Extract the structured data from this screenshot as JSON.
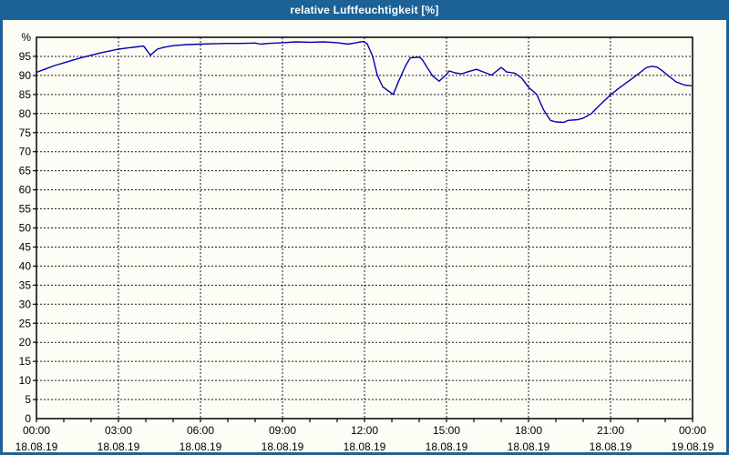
{
  "window": {
    "title": "relative Luftfeuchtigkeit [%]"
  },
  "colors": {
    "titlebar": "#1c6296",
    "window_border": "#1c6296",
    "title_text": "#ffffff",
    "plot_background": "#fdfdf6",
    "plot_border": "#000000",
    "grid": "#1a1a1a",
    "tick_text": "#000000",
    "line": "#0000b2"
  },
  "chart_data": {
    "type": "line",
    "title": "relative Luftfeuchtigkeit [%]",
    "xlabel": "",
    "ylabel": "%",
    "ylim": [
      0,
      100
    ],
    "y_tick_step": 5,
    "x_hours_range": [
      0,
      24
    ],
    "grid": "dashed",
    "legend": "none",
    "y_axis": {
      "unit_label": "%",
      "tick_labels": [
        "0",
        "5",
        "10",
        "15",
        "20",
        "25",
        "30",
        "35",
        "40",
        "45",
        "50",
        "55",
        "60",
        "65",
        "70",
        "75",
        "80",
        "85",
        "90",
        "95"
      ]
    },
    "x_axis": {
      "minor_tick_every_hours": 1,
      "ticks": [
        {
          "hour": 0,
          "time": "00:00",
          "date": "18.08.19"
        },
        {
          "hour": 3,
          "time": "03:00",
          "date": "18.08.19"
        },
        {
          "hour": 6,
          "time": "06:00",
          "date": "18.08.19"
        },
        {
          "hour": 9,
          "time": "09:00",
          "date": "18.08.19"
        },
        {
          "hour": 12,
          "time": "12:00",
          "date": "18.08.19"
        },
        {
          "hour": 15,
          "time": "15:00",
          "date": "18.08.19"
        },
        {
          "hour": 18,
          "time": "18:00",
          "date": "18.08.19"
        },
        {
          "hour": 21,
          "time": "21:00",
          "date": "18.08.19"
        },
        {
          "hour": 24,
          "time": "00:00",
          "date": "19.08.19"
        }
      ]
    },
    "series": [
      {
        "name": "relative Luftfeuchtigkeit",
        "color": "#0000b2",
        "points": [
          [
            0.0,
            90.8
          ],
          [
            0.33,
            91.7
          ],
          [
            0.67,
            92.6
          ],
          [
            1.0,
            93.3
          ],
          [
            1.33,
            94.0
          ],
          [
            1.67,
            94.7
          ],
          [
            2.0,
            95.3
          ],
          [
            2.33,
            95.9
          ],
          [
            2.67,
            96.4
          ],
          [
            3.0,
            96.9
          ],
          [
            3.33,
            97.2
          ],
          [
            3.67,
            97.5
          ],
          [
            3.92,
            97.7
          ],
          [
            4.17,
            95.3
          ],
          [
            4.42,
            96.9
          ],
          [
            4.67,
            97.4
          ],
          [
            5.0,
            97.8
          ],
          [
            5.5,
            98.1
          ],
          [
            6.0,
            98.2
          ],
          [
            6.5,
            98.3
          ],
          [
            7.0,
            98.4
          ],
          [
            7.5,
            98.4
          ],
          [
            8.0,
            98.5
          ],
          [
            8.2,
            98.2
          ],
          [
            8.5,
            98.4
          ],
          [
            9.0,
            98.6
          ],
          [
            9.5,
            98.8
          ],
          [
            10.0,
            98.7
          ],
          [
            10.5,
            98.8
          ],
          [
            11.0,
            98.6
          ],
          [
            11.4,
            98.2
          ],
          [
            11.7,
            98.6
          ],
          [
            11.95,
            98.9
          ],
          [
            12.1,
            98.3
          ],
          [
            12.3,
            95.0
          ],
          [
            12.47,
            90.0
          ],
          [
            12.67,
            87.0
          ],
          [
            13.05,
            85.0
          ],
          [
            13.25,
            88.5
          ],
          [
            13.5,
            92.5
          ],
          [
            13.67,
            94.6
          ],
          [
            14.0,
            94.8
          ],
          [
            14.1,
            94.3
          ],
          [
            14.3,
            92.0
          ],
          [
            14.5,
            89.8
          ],
          [
            14.73,
            88.5
          ],
          [
            15.0,
            90.3
          ],
          [
            15.1,
            91.2
          ],
          [
            15.3,
            90.7
          ],
          [
            15.55,
            90.4
          ],
          [
            15.8,
            91.0
          ],
          [
            16.1,
            91.6
          ],
          [
            16.35,
            90.9
          ],
          [
            16.65,
            90.1
          ],
          [
            17.0,
            92.1
          ],
          [
            17.2,
            90.9
          ],
          [
            17.5,
            90.6
          ],
          [
            17.75,
            89.3
          ],
          [
            18.0,
            86.9
          ],
          [
            18.3,
            85.0
          ],
          [
            18.55,
            81.0
          ],
          [
            18.8,
            78.2
          ],
          [
            19.0,
            77.8
          ],
          [
            19.3,
            77.7
          ],
          [
            19.45,
            78.2
          ],
          [
            19.8,
            78.4
          ],
          [
            20.0,
            78.8
          ],
          [
            20.3,
            80.0
          ],
          [
            20.6,
            82.2
          ],
          [
            21.0,
            84.9
          ],
          [
            21.3,
            86.6
          ],
          [
            21.7,
            88.7
          ],
          [
            22.0,
            90.3
          ],
          [
            22.3,
            92.0
          ],
          [
            22.5,
            92.4
          ],
          [
            22.7,
            92.2
          ],
          [
            22.9,
            91.2
          ],
          [
            23.1,
            90.0
          ],
          [
            23.4,
            88.3
          ],
          [
            23.7,
            87.5
          ],
          [
            23.95,
            87.3
          ]
        ]
      }
    ]
  }
}
